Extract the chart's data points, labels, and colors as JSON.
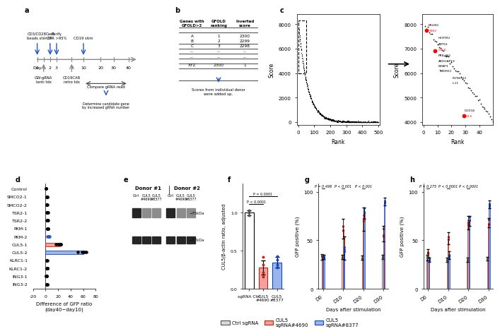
{
  "panel_d": {
    "genes": [
      "Control",
      "SMCO2-1",
      "SMCO2-2",
      "TSR2-1",
      "TSR2-2",
      "PKM-1",
      "PKM-2",
      "CUL5-1",
      "CUL5-2",
      "KLRC1-1",
      "KLRC1-2",
      "ING3-1",
      "ING3-2"
    ],
    "xlabel": "Difference of GFP ratio\n(day40−day10)",
    "xlim": [
      -20,
      80
    ]
  },
  "panel_f": {
    "values": [
      1.0,
      0.28,
      0.35
    ],
    "errors": [
      0.03,
      0.09,
      0.07
    ],
    "colors": [
      "white",
      "#f5a0a0",
      "#9bb5f0"
    ],
    "edge_colors": [
      "black",
      "#cc2200",
      "#1144cc"
    ],
    "ylabel": "CUL5/β-actin ratio, adjusted",
    "dots_ctrl": [
      0.97,
      1.0,
      1.03
    ],
    "dots_4690": [
      0.16,
      0.22,
      0.32,
      0.42
    ],
    "dots_8377": [
      0.28,
      0.32,
      0.38,
      0.43
    ]
  },
  "panel_g": {
    "timepoints": [
      "D0",
      "D10",
      "D20",
      "D30"
    ],
    "ctrl_values": [
      33,
      33,
      32,
      33
    ],
    "ctrl_errors": [
      3,
      2,
      2,
      2
    ],
    "red_values": [
      33,
      62,
      72,
      57
    ],
    "red_errors": [
      2,
      10,
      12,
      8
    ],
    "blue_values": [
      33,
      42,
      78,
      90
    ],
    "blue_errors": [
      2,
      12,
      6,
      4
    ],
    "ylabel": "GFP positive (%)",
    "xlabel": "Days after stimulation",
    "p_values": [
      "P = 0.498",
      "P < 0.001",
      "P < 0.001"
    ]
  },
  "panel_h": {
    "timepoints": [
      "D0",
      "D10",
      "D20",
      "D30"
    ],
    "ctrl_values": [
      32,
      30,
      30,
      31
    ],
    "ctrl_errors": [
      3,
      2,
      2,
      2
    ],
    "red_values": [
      37,
      52,
      68,
      68
    ],
    "red_errors": [
      4,
      6,
      7,
      5
    ],
    "blue_values": [
      30,
      35,
      70,
      87
    ],
    "blue_errors": [
      2,
      4,
      5,
      4
    ],
    "ylabel": "GFP positive (%)",
    "xlabel": "Days after stimulation",
    "p_values": [
      "P = 0.275",
      "P < 0.0001",
      "P < 0.0001"
    ]
  }
}
